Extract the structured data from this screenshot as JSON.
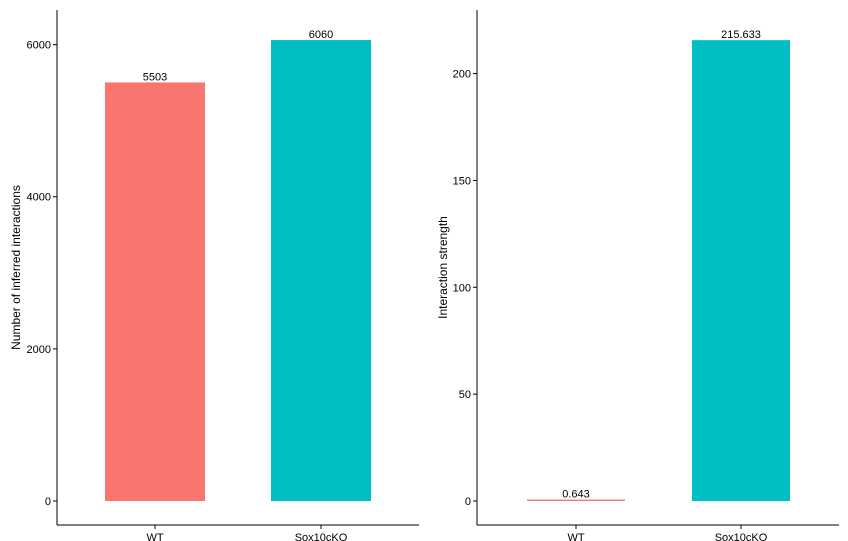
{
  "colors": {
    "series_a": "#F8766D",
    "series_b": "#00BFC4"
  },
  "chart_data": [
    {
      "type": "bar",
      "categories": [
        "WT",
        "Sox10cKO"
      ],
      "values": [
        5503,
        6060
      ],
      "value_labels": [
        "5503",
        "6060"
      ],
      "title": "",
      "xlabel": "",
      "ylabel": "Number of inferred interactions",
      "ylim": [
        0,
        6350
      ],
      "yticks": [
        0,
        2000,
        4000,
        6000
      ],
      "ytick_labels": [
        "0",
        "2000",
        "4000",
        "6000"
      ],
      "grid": false,
      "legend": "none"
    },
    {
      "type": "bar",
      "categories": [
        "WT",
        "Sox10cKO"
      ],
      "values": [
        0.643,
        215.633
      ],
      "value_labels": [
        "0.643",
        "215.633"
      ],
      "title": "",
      "xlabel": "",
      "ylabel": "Interaction strength",
      "ylim": [
        0,
        226
      ],
      "yticks": [
        0,
        50,
        100,
        150,
        200
      ],
      "ytick_labels": [
        "0",
        "50",
        "100",
        "150",
        "200"
      ],
      "grid": false,
      "legend": "none"
    }
  ]
}
